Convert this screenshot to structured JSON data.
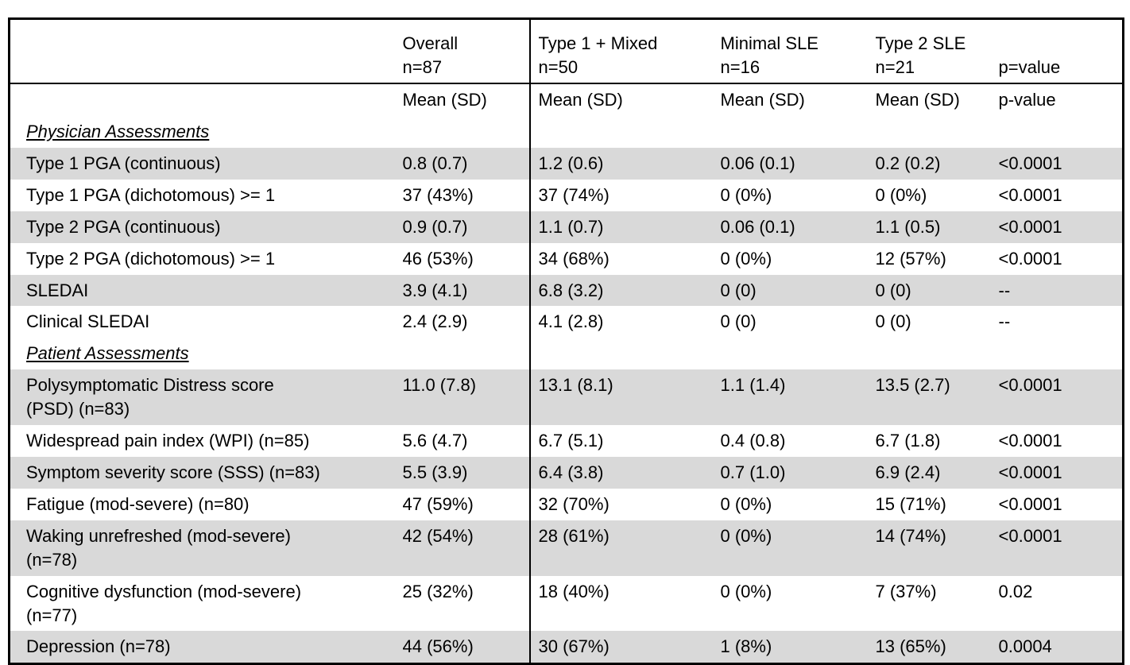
{
  "colors": {
    "row_shading": "#d9d9d9",
    "border": "#000000",
    "background": "#ffffff",
    "text": "#000000"
  },
  "table": {
    "columns": [
      {
        "id": "label",
        "line1": "",
        "line2": ""
      },
      {
        "id": "overall",
        "line1": "Overall",
        "line2": "n=87"
      },
      {
        "id": "type1-mixed",
        "line1": "Type 1 + Mixed",
        "line2": "n=50"
      },
      {
        "id": "minimal-sle",
        "line1": "Minimal SLE",
        "line2": "n=16"
      },
      {
        "id": "type2-sle",
        "line1": "Type 2 SLE",
        "line2": "n=21"
      },
      {
        "id": "pvalue",
        "line1": "",
        "line2": "p=value"
      }
    ],
    "subheader": [
      "",
      "Mean (SD)",
      "Mean (SD)",
      "Mean (SD)",
      "Mean (SD)",
      "p-value"
    ],
    "rows": [
      {
        "type": "section",
        "label": "Physician Assessments"
      },
      {
        "type": "data",
        "shaded": true,
        "label": "Type 1 PGA (continuous)",
        "values": [
          "0.8 (0.7)",
          "1.2 (0.6)",
          "0.06 (0.1)",
          "0.2 (0.2)",
          "<0.0001"
        ]
      },
      {
        "type": "data",
        "shaded": false,
        "label": "Type 1 PGA (dichotomous) >= 1",
        "values": [
          "37 (43%)",
          "37 (74%)",
          "0 (0%)",
          "0 (0%)",
          "<0.0001"
        ]
      },
      {
        "type": "data",
        "shaded": true,
        "label": "Type 2 PGA (continuous)",
        "values": [
          "0.9 (0.7)",
          "1.1 (0.7)",
          "0.06 (0.1)",
          "1.1 (0.5)",
          "<0.0001"
        ]
      },
      {
        "type": "data",
        "shaded": false,
        "label": "Type 2 PGA (dichotomous) >= 1",
        "values": [
          "46 (53%)",
          "34 (68%)",
          "0 (0%)",
          "12 (57%)",
          "<0.0001"
        ]
      },
      {
        "type": "data",
        "shaded": true,
        "label": "SLEDAI",
        "values": [
          "3.9 (4.1)",
          "6.8 (3.2)",
          "0 (0)",
          "0 (0)",
          "--"
        ]
      },
      {
        "type": "data",
        "shaded": false,
        "label": "Clinical SLEDAI",
        "values": [
          "2.4 (2.9)",
          "4.1 (2.8)",
          "0 (0)",
          "0 (0)",
          "--"
        ]
      },
      {
        "type": "section",
        "label": "Patient Assessments"
      },
      {
        "type": "data",
        "shaded": true,
        "label": "Polysymptomatic Distress score\n(PSD) (n=83)",
        "values": [
          "11.0 (7.8)",
          "13.1 (8.1)",
          "1.1 (1.4)",
          "13.5 (2.7)",
          "<0.0001"
        ]
      },
      {
        "type": "data",
        "shaded": false,
        "label": "Widespread pain index (WPI) (n=85)",
        "values": [
          "5.6 (4.7)",
          "6.7 (5.1)",
          "0.4 (0.8)",
          "6.7 (1.8)",
          "<0.0001"
        ]
      },
      {
        "type": "data",
        "shaded": true,
        "label": "Symptom severity score (SSS) (n=83)",
        "values": [
          "5.5 (3.9)",
          "6.4 (3.8)",
          "0.7 (1.0)",
          "6.9 (2.4)",
          "<0.0001"
        ]
      },
      {
        "type": "data",
        "shaded": false,
        "label": "Fatigue (mod-severe) (n=80)",
        "values": [
          "47 (59%)",
          "32 (70%)",
          "0 (0%)",
          "15 (71%)",
          "<0.0001"
        ]
      },
      {
        "type": "data",
        "shaded": true,
        "label": "Waking unrefreshed (mod-severe)\n(n=78)",
        "values": [
          "42 (54%)",
          "28 (61%)",
          "0 (0%)",
          "14 (74%)",
          "<0.0001"
        ]
      },
      {
        "type": "data",
        "shaded": false,
        "label": "Cognitive dysfunction (mod-severe)\n(n=77)",
        "values": [
          "25 (32%)",
          "18 (40%)",
          "0 (0%)",
          "7 (37%)",
          "0.02"
        ]
      },
      {
        "type": "data",
        "shaded": true,
        "label": "Depression (n=78)",
        "values": [
          "44 (56%)",
          "30 (67%)",
          "1 (8%)",
          "13 (65%)",
          "0.0004"
        ]
      }
    ]
  }
}
